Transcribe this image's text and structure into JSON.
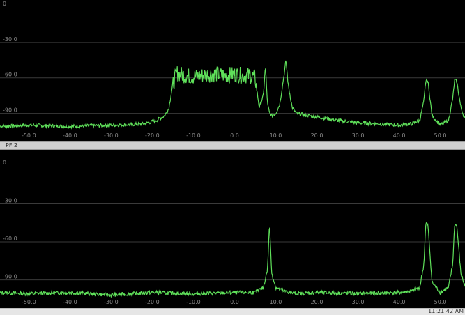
{
  "panels": [
    {
      "x_ticks": [
        "-50.0",
        "-40.0",
        "-30.0",
        "-20.0",
        "-10.0",
        "0.0",
        "10.0",
        "20.0",
        "30.0",
        "40.0",
        "50.0"
      ],
      "y_ticks": [
        "0",
        "-30.0",
        "-60.0",
        "-90.0"
      ],
      "trace_color": "#5fe05a"
    },
    {
      "x_ticks": [
        "-50.0",
        "-40.0",
        "-30.0",
        "-20.0",
        "-10.0",
        "0.0",
        "10.0",
        "20.0",
        "30.0",
        "40.0",
        "50.0"
      ],
      "y_ticks": [
        "0",
        "-30.0",
        "-60.0",
        "-90.0"
      ],
      "trace_color": "#5fe05a"
    }
  ],
  "separator_label": "PF 2",
  "status_time": "11:21:42 AM",
  "chart_data": [
    {
      "type": "line",
      "xlim": [
        -57,
        56
      ],
      "ylim": [
        -115,
        0
      ],
      "series": [
        {
          "x": [
            -57,
            -50,
            -40,
            -30,
            -22,
            -19,
            -17,
            -16,
            -15,
            -14,
            -12,
            -10,
            -8,
            -6,
            -4,
            -2,
            0,
            2,
            4,
            5,
            6,
            7,
            7.5,
            8,
            8.5,
            9,
            10,
            11,
            12,
            12.5,
            13,
            14,
            15,
            18,
            20,
            25,
            30,
            35,
            40,
            43,
            45,
            46,
            46.5,
            47,
            48,
            50,
            52,
            53,
            53.5,
            54,
            55,
            56
          ],
          "y": [
            -101,
            -100,
            -101,
            -100,
            -99,
            -96,
            -92,
            -86,
            -65,
            -56,
            -58,
            -59,
            -58,
            -57,
            -57,
            -58,
            -57,
            -58,
            -58,
            -60,
            -85,
            -75,
            -50,
            -82,
            -90,
            -92,
            -90,
            -82,
            -58,
            -45,
            -65,
            -85,
            -90,
            -92,
            -93,
            -96,
            -98,
            -99,
            -100,
            -99,
            -96,
            -80,
            -62,
            -63,
            -92,
            -100,
            -96,
            -78,
            -62,
            -63,
            -85,
            -95
          ]
        }
      ]
    },
    {
      "type": "line",
      "xlim": [
        -57,
        56
      ],
      "ylim": [
        -115,
        0
      ],
      "series": [
        {
          "x": [
            -57,
            -50,
            -40,
            -30,
            -20,
            -10,
            0,
            5,
            7,
            8,
            8.5,
            9,
            10,
            12,
            15,
            20,
            30,
            40,
            43,
            45,
            46,
            46.5,
            47,
            48,
            50,
            52,
            53,
            53.5,
            54,
            55,
            56
          ],
          "y": [
            -100,
            -101,
            -100,
            -102,
            -100,
            -101,
            -100,
            -100,
            -96,
            -82,
            -45,
            -84,
            -96,
            -99,
            -101,
            -100,
            -101,
            -100,
            -99,
            -96,
            -78,
            -45,
            -47,
            -92,
            -100,
            -96,
            -78,
            -46,
            -47,
            -85,
            -95
          ]
        }
      ]
    }
  ]
}
